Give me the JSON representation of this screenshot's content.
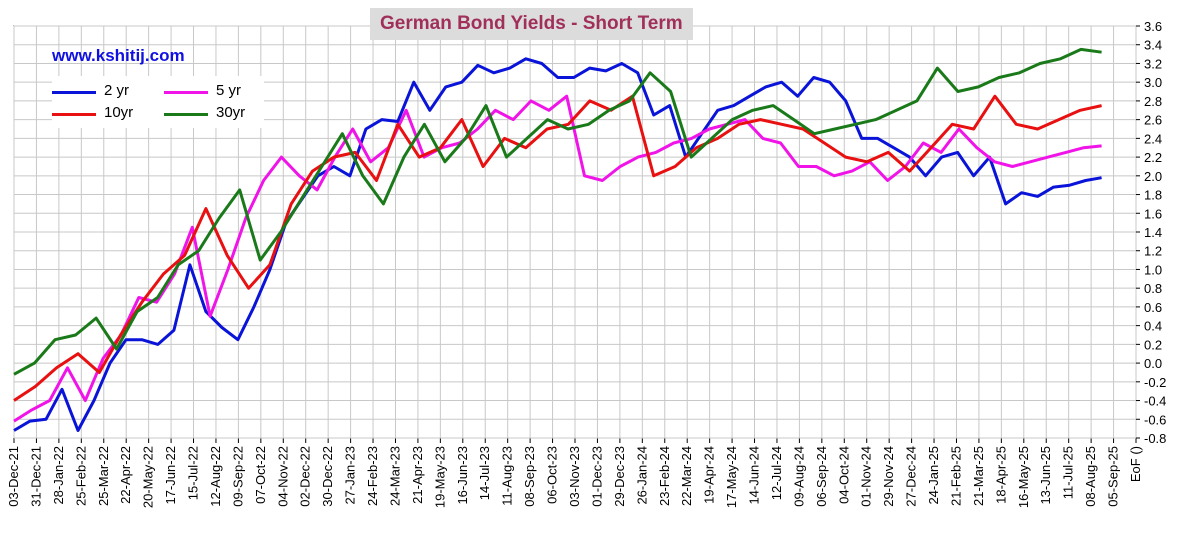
{
  "chart_data": {
    "type": "line",
    "title": "German  Bond  Yields  - Short  Term",
    "watermark": "www.kshitij.com",
    "ylim": [
      -0.8,
      3.6
    ],
    "ytick_step": 0.2,
    "grid": true,
    "legend_position": "top-left",
    "x_tick_labels": [
      "03-Dec-21",
      "31-Dec-21",
      "28-Jan-22",
      "25-Feb-22",
      "25-Mar-22",
      "22-Apr-22",
      "20-May-22",
      "17-Jun-22",
      "15-Jul-22",
      "12-Aug-22",
      "09-Sep-22",
      "07-Oct-22",
      "04-Nov-22",
      "02-Dec-22",
      "30-Dec-22",
      "27-Jan-23",
      "24-Feb-23",
      "24-Mar-23",
      "21-Apr-23",
      "19-May-23",
      "16-Jun-23",
      "14-Jul-23",
      "11-Aug-23",
      "08-Sep-23",
      "06-Oct-23",
      "03-Nov-23",
      "01-Dec-23",
      "29-Dec-23",
      "26-Jan-24",
      "23-Feb-24",
      "22-Mar-24",
      "19-Apr-24",
      "17-May-24",
      "14-Jun-24",
      "12-Jul-24",
      "09-Aug-24",
      "06-Sep-24",
      "04-Oct-24",
      "01-Nov-24",
      "29-Nov-24",
      "27-Dec-24",
      "24-Jan-25",
      "21-Feb-25",
      "21-Mar-25",
      "18-Apr-25",
      "16-May-25",
      "13-Jun-25",
      "11-Jul-25",
      "08-Aug-25",
      "05-Sep-25",
      "EoF ()"
    ],
    "series": [
      {
        "name": "2 yr",
        "color": "#0a14d8",
        "values": [
          -0.72,
          -0.62,
          -0.6,
          -0.28,
          -0.72,
          -0.4,
          0.0,
          0.25,
          0.25,
          0.2,
          0.35,
          1.05,
          0.55,
          0.38,
          0.25,
          0.6,
          1.0,
          1.5,
          1.75,
          2.0,
          2.1,
          2.0,
          2.5,
          2.6,
          2.58,
          3.0,
          2.7,
          2.95,
          3.0,
          3.18,
          3.1,
          3.15,
          3.25,
          3.2,
          3.05,
          3.05,
          3.15,
          3.12,
          3.2,
          3.1,
          2.65,
          2.75,
          2.2,
          2.45,
          2.7,
          2.75,
          2.85,
          2.95,
          3.0,
          2.85,
          3.05,
          3.0,
          2.8,
          2.4,
          2.4,
          2.3,
          2.2,
          2.0,
          2.2,
          2.25,
          2.0,
          2.2,
          1.7,
          1.82,
          1.78,
          1.88,
          1.9,
          1.95,
          1.98
        ]
      },
      {
        "name": "5 yr",
        "color": "#f014e8",
        "values": [
          -0.62,
          -0.5,
          -0.4,
          -0.05,
          -0.4,
          0.05,
          0.3,
          0.7,
          0.65,
          0.95,
          1.45,
          0.5,
          1.0,
          1.55,
          1.95,
          2.2,
          2.0,
          1.85,
          2.2,
          2.5,
          2.15,
          2.3,
          2.7,
          2.2,
          2.3,
          2.35,
          2.5,
          2.7,
          2.6,
          2.8,
          2.7,
          2.85,
          2.0,
          1.95,
          2.1,
          2.2,
          2.25,
          2.35,
          2.4,
          2.5,
          2.55,
          2.6,
          2.4,
          2.35,
          2.1,
          2.1,
          2.0,
          2.05,
          2.15,
          1.95,
          2.1,
          2.35,
          2.25,
          2.5,
          2.3,
          2.15,
          2.1,
          2.15,
          2.2,
          2.25,
          2.3,
          2.32
        ]
      },
      {
        "name": "10yr",
        "color": "#e81010",
        "values": [
          -0.4,
          -0.25,
          -0.05,
          0.1,
          -0.1,
          0.3,
          0.65,
          0.95,
          1.15,
          1.65,
          1.15,
          0.8,
          1.05,
          1.7,
          2.05,
          2.2,
          2.25,
          1.95,
          2.55,
          2.2,
          2.3,
          2.6,
          2.1,
          2.4,
          2.3,
          2.5,
          2.55,
          2.8,
          2.7,
          2.85,
          2.0,
          2.1,
          2.3,
          2.4,
          2.55,
          2.6,
          2.55,
          2.5,
          2.35,
          2.2,
          2.15,
          2.25,
          2.05,
          2.3,
          2.55,
          2.5,
          2.85,
          2.55,
          2.5,
          2.6,
          2.7,
          2.75
        ]
      },
      {
        "name": "30yr",
        "color": "#1a7a1a",
        "values": [
          -0.12,
          0.0,
          0.25,
          0.3,
          0.48,
          0.15,
          0.55,
          0.7,
          1.05,
          1.2,
          1.55,
          1.85,
          1.1,
          1.4,
          1.75,
          2.1,
          2.45,
          2.0,
          1.7,
          2.2,
          2.55,
          2.15,
          2.4,
          2.75,
          2.2,
          2.4,
          2.6,
          2.5,
          2.55,
          2.7,
          2.8,
          3.1,
          2.9,
          2.2,
          2.4,
          2.6,
          2.7,
          2.75,
          2.6,
          2.45,
          2.5,
          2.55,
          2.6,
          2.7,
          2.8,
          3.15,
          2.9,
          2.95,
          3.05,
          3.1,
          3.2,
          3.25,
          3.35,
          3.32
        ]
      }
    ]
  }
}
